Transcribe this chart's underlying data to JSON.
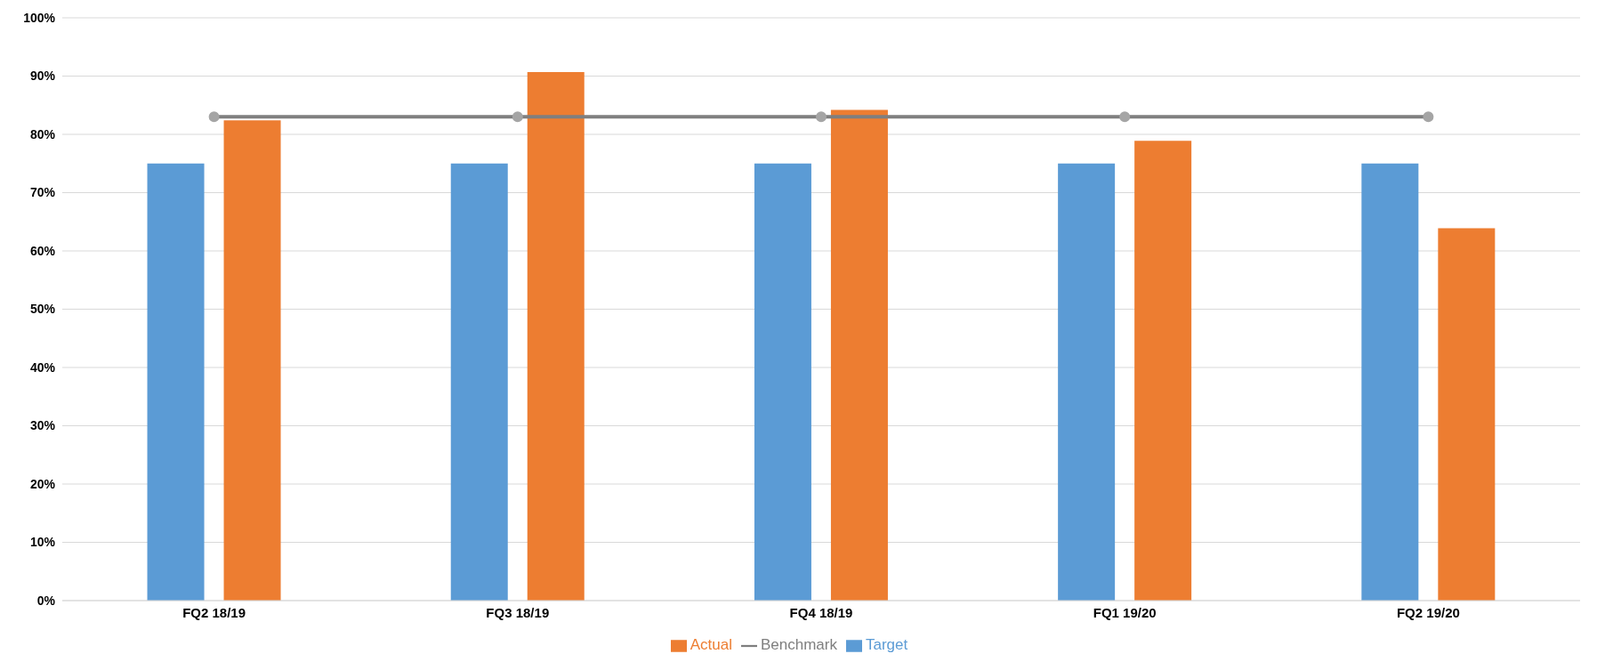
{
  "chart_data": {
    "type": "bar",
    "categories": [
      "FQ2 18/19",
      "FQ3 18/19",
      "FQ4 18/19",
      "FQ1 19/20",
      "FQ2 19/20"
    ],
    "series": [
      {
        "name": "Target",
        "color": "#5b9bd5",
        "values": [
          75,
          75,
          75,
          75,
          75
        ]
      },
      {
        "name": "Actual",
        "color": "#ed7d31",
        "values": [
          82.4,
          90.7,
          84.2,
          78.9,
          63.9
        ]
      },
      {
        "name": "Benchmark",
        "type": "line",
        "color": "#7f7f7f",
        "marker": "circle",
        "values": [
          83,
          83,
          83,
          83,
          83
        ]
      }
    ],
    "ylim": [
      0,
      100
    ],
    "yticks": [
      {
        "value": 0,
        "label": "0%"
      },
      {
        "value": 10,
        "label": "10%"
      },
      {
        "value": 20,
        "label": "20%"
      },
      {
        "value": 30,
        "label": "30%"
      },
      {
        "value": 40,
        "label": "40%"
      },
      {
        "value": 50,
        "label": "50%"
      },
      {
        "value": 60,
        "label": "60%"
      },
      {
        "value": 70,
        "label": "70%"
      },
      {
        "value": 80,
        "label": "80%"
      },
      {
        "value": 90,
        "label": "90%"
      },
      {
        "value": 100,
        "label": "100%"
      }
    ],
    "grid": "y",
    "legend": "bottom"
  }
}
